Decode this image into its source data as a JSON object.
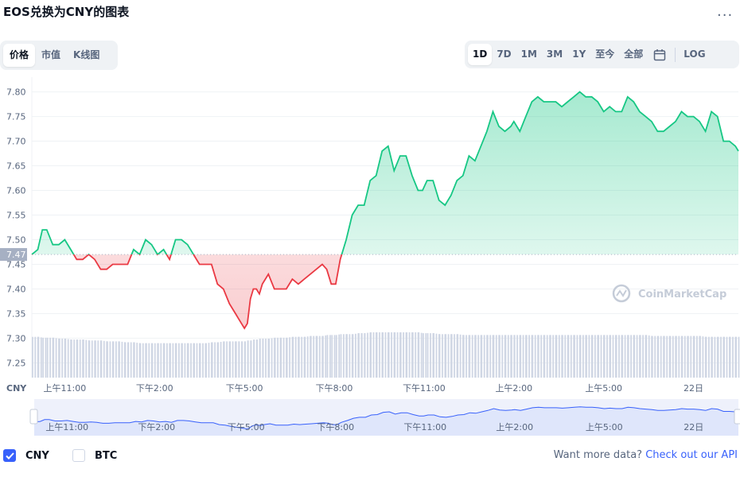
{
  "header": {
    "title": "EOS兑换为CNY的图表",
    "more_label": "..."
  },
  "view_tabs": [
    {
      "label": "价格",
      "active": true
    },
    {
      "label": "市值",
      "active": false
    },
    {
      "label": "K线图",
      "active": false
    }
  ],
  "range_tabs": [
    {
      "label": "1D",
      "active": true
    },
    {
      "label": "7D",
      "active": false
    },
    {
      "label": "1M",
      "active": false
    },
    {
      "label": "3M",
      "active": false
    },
    {
      "label": "1Y",
      "active": false
    },
    {
      "label": "至今",
      "active": false
    },
    {
      "label": "全部",
      "active": false
    }
  ],
  "log_label": "LOG",
  "icons": {
    "calendar": "calendar-icon",
    "check": "check-icon",
    "watermark": "coinmarketcap-logo-icon"
  },
  "colors": {
    "up": "#16c784",
    "down": "#ea3943",
    "volume": "#cfd6e4",
    "navigator": "#3861fb",
    "marker": "#a6b0c3"
  },
  "legend": {
    "cny": {
      "label": "CNY",
      "checked": true
    },
    "btc": {
      "label": "BTC",
      "checked": false
    }
  },
  "footer": {
    "text": "Want more data?",
    "link": "Check out our API"
  },
  "chart_data": {
    "type": "area",
    "currency_label": "CNY",
    "watermark": "CoinMarketCap",
    "baseline": 7.47,
    "baseline_label": "7.47",
    "ylim": [
      7.22,
      7.83
    ],
    "yticks": [
      7.25,
      7.3,
      7.35,
      7.4,
      7.45,
      7.5,
      7.55,
      7.6,
      7.65,
      7.7,
      7.75,
      7.8
    ],
    "ytick_labels": [
      "7.25",
      "7.30",
      "7.35",
      "7.40",
      "7.45",
      "7.50",
      "7.55",
      "7.60",
      "7.65",
      "7.70",
      "7.75",
      "7.80"
    ],
    "x_range_hours": [
      9.9,
      33.5
    ],
    "xticks": [
      {
        "label": "上午11:00",
        "hour": 11
      },
      {
        "label": "下午2:00",
        "hour": 14
      },
      {
        "label": "下午5:00",
        "hour": 17
      },
      {
        "label": "下午8:00",
        "hour": 20
      },
      {
        "label": "下午11:00",
        "hour": 23
      },
      {
        "label": "上午2:00",
        "hour": 26
      },
      {
        "label": "上午5:00",
        "hour": 29
      },
      {
        "label": "22日",
        "hour": 32
      }
    ],
    "series": [
      {
        "x": [
          9.9,
          10.1,
          10.25,
          10.4,
          10.6,
          10.8,
          11.0,
          11.2,
          11.4,
          11.6,
          11.8,
          12.0,
          12.2,
          12.4,
          12.6,
          12.8,
          13.0,
          13.1,
          13.3,
          13.5,
          13.7,
          13.9,
          14.1,
          14.3,
          14.5,
          14.7,
          14.9,
          15.1,
          15.3,
          15.5,
          15.7,
          15.9,
          16.1,
          16.3,
          16.5,
          16.7,
          16.8,
          16.9,
          17.0,
          17.1,
          17.2,
          17.3,
          17.4,
          17.5,
          17.6,
          17.8,
          18.0,
          18.2,
          18.4,
          18.6,
          18.8,
          19.0,
          19.2,
          19.4,
          19.6,
          19.75,
          19.9,
          20.05,
          20.2,
          20.4,
          20.6,
          20.8,
          20.9,
          21.0,
          21.2,
          21.4,
          21.6,
          21.8,
          22.0,
          22.2,
          22.4,
          22.6,
          22.8,
          22.95,
          23.1,
          23.3,
          23.5,
          23.7,
          23.9,
          24.1,
          24.3,
          24.5,
          24.7,
          24.9,
          25.1,
          25.3,
          25.5,
          25.7,
          25.9,
          26.0,
          26.2,
          26.4,
          26.6,
          26.8,
          27.0,
          27.2,
          27.4,
          27.6,
          27.8,
          28.0,
          28.2,
          28.4,
          28.6,
          28.8,
          29.0,
          29.2,
          29.4,
          29.6,
          29.8,
          30.0,
          30.2,
          30.4,
          30.6,
          30.8,
          31.0,
          31.2,
          31.4,
          31.6,
          31.8,
          32.0,
          32.2,
          32.4,
          32.6,
          32.8,
          33.0,
          33.2,
          33.4,
          33.5
        ],
        "y": [
          7.47,
          7.48,
          7.52,
          7.52,
          7.49,
          7.49,
          7.5,
          7.48,
          7.46,
          7.46,
          7.47,
          7.46,
          7.44,
          7.44,
          7.45,
          7.45,
          7.45,
          7.45,
          7.48,
          7.47,
          7.5,
          7.49,
          7.47,
          7.48,
          7.46,
          7.5,
          7.5,
          7.49,
          7.47,
          7.45,
          7.45,
          7.45,
          7.41,
          7.4,
          7.37,
          7.35,
          7.34,
          7.33,
          7.32,
          7.33,
          7.38,
          7.4,
          7.4,
          7.39,
          7.41,
          7.43,
          7.4,
          7.4,
          7.4,
          7.42,
          7.41,
          7.42,
          7.43,
          7.44,
          7.45,
          7.44,
          7.41,
          7.41,
          7.46,
          7.5,
          7.55,
          7.57,
          7.57,
          7.57,
          7.62,
          7.63,
          7.68,
          7.69,
          7.64,
          7.67,
          7.67,
          7.63,
          7.6,
          7.6,
          7.62,
          7.62,
          7.58,
          7.57,
          7.59,
          7.62,
          7.63,
          7.67,
          7.66,
          7.69,
          7.72,
          7.76,
          7.73,
          7.72,
          7.73,
          7.74,
          7.72,
          7.75,
          7.78,
          7.79,
          7.78,
          7.78,
          7.78,
          7.77,
          7.78,
          7.79,
          7.8,
          7.79,
          7.79,
          7.78,
          7.76,
          7.77,
          7.76,
          7.76,
          7.79,
          7.78,
          7.76,
          7.75,
          7.74,
          7.72,
          7.72,
          7.73,
          7.74,
          7.76,
          7.75,
          7.75,
          7.74,
          7.72,
          7.76,
          7.75,
          7.7,
          7.7,
          7.69,
          7.68
        ],
        "volume": [
          0.45,
          0.45,
          0.44,
          0.44,
          0.44,
          0.43,
          0.43,
          0.42,
          0.42,
          0.42,
          0.41,
          0.41,
          0.41,
          0.4,
          0.4,
          0.4,
          0.39,
          0.39,
          0.39,
          0.38,
          0.38,
          0.38,
          0.38,
          0.38,
          0.38,
          0.38,
          0.38,
          0.38,
          0.38,
          0.38,
          0.38,
          0.39,
          0.39,
          0.4,
          0.4,
          0.4,
          0.4,
          0.4,
          0.4,
          0.41,
          0.41,
          0.42,
          0.42,
          0.43,
          0.43,
          0.43,
          0.44,
          0.44,
          0.44,
          0.45,
          0.45,
          0.45,
          0.46,
          0.46,
          0.46,
          0.47,
          0.47,
          0.47,
          0.48,
          0.48,
          0.48,
          0.49,
          0.49,
          0.49,
          0.5,
          0.5,
          0.5,
          0.5,
          0.5,
          0.5,
          0.5,
          0.5,
          0.5,
          0.49,
          0.49,
          0.49,
          0.48,
          0.48,
          0.48,
          0.48,
          0.47,
          0.47,
          0.47,
          0.47,
          0.47,
          0.47,
          0.47,
          0.47,
          0.47,
          0.47,
          0.47,
          0.47,
          0.47,
          0.47,
          0.47,
          0.47,
          0.47,
          0.47,
          0.47,
          0.47,
          0.47,
          0.47,
          0.47,
          0.47,
          0.47,
          0.47,
          0.47,
          0.47,
          0.47,
          0.47,
          0.47,
          0.47,
          0.46,
          0.46,
          0.46,
          0.46,
          0.46,
          0.46,
          0.46,
          0.46,
          0.46,
          0.45,
          0.45,
          0.45,
          0.45,
          0.45,
          0.45,
          0.45
        ]
      }
    ]
  }
}
